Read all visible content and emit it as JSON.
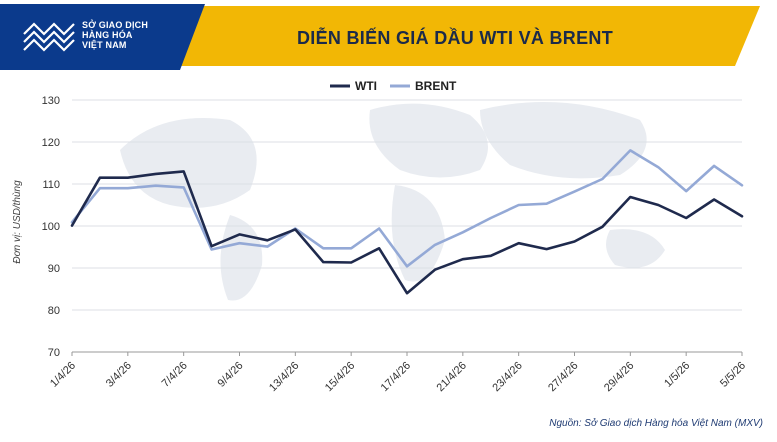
{
  "header": {
    "logo_lines": [
      "SỞ GIAO DỊCH",
      "HÀNG HÓA",
      "VIỆT NAM"
    ],
    "title": "DIỄN BIẾN GIÁ DẦU WTI VÀ BRENT"
  },
  "source": "Nguồn: Sở Giao dịch Hàng hóa Việt Nam (MXV)",
  "colors": {
    "accent": "#f2b705",
    "wti": "#1f2a4d",
    "brent": "#94a9d6",
    "brand_blue": "#0b3a8c"
  },
  "chart_data": {
    "type": "line",
    "ylabel": "Đơn vị: USD/thùng",
    "ylim": [
      70,
      130
    ],
    "yticks": [
      70,
      80,
      90,
      100,
      110,
      120,
      130
    ],
    "grid": true,
    "legend_position": "top-center",
    "x_tick_labels": [
      "1/4/26",
      "3/4/26",
      "5/4/26",
      "7/4/26",
      "9/4/26",
      "11/4/26",
      "13/4/26",
      "15/4/26",
      "17/4/26",
      "19/4/26",
      "21/4/26",
      "23/4/26",
      "25/4/26",
      "27/4/26",
      "29/4/26",
      "1/5/26",
      "3/5/26",
      "5/5/26"
    ],
    "x": [
      "1/4/26",
      "2/4/26",
      "3/4/26",
      "6/4/26",
      "7/4/26",
      "8/4/26",
      "9/4/26",
      "10/4/26",
      "13/4/26",
      "14/4/26",
      "15/4/26",
      "16/4/26",
      "17/4/26",
      "20/4/26",
      "21/4/26",
      "22/4/26",
      "23/4/26",
      "24/4/26",
      "27/4/26",
      "28/4/26",
      "29/4/26",
      "30/4/26",
      "1/5/26",
      "4/5/26",
      "5/5/26"
    ],
    "series": [
      {
        "name": "WTI",
        "values": [
          100.1,
          111.5,
          111.5,
          112.4,
          113.0,
          95.2,
          98.0,
          96.6,
          99.2,
          91.4,
          91.3,
          94.7,
          84.0,
          89.6,
          92.1,
          92.9,
          95.9,
          94.5,
          96.3,
          99.8,
          106.9,
          105.0,
          101.9,
          106.3,
          102.3
        ]
      },
      {
        "name": "BRENT",
        "values": [
          100.9,
          109.0,
          109.0,
          109.6,
          109.2,
          94.4,
          95.9,
          95.1,
          99.4,
          94.7,
          94.7,
          99.4,
          90.4,
          95.5,
          98.5,
          101.9,
          105.0,
          105.3,
          108.2,
          111.2,
          118.0,
          114.0,
          108.3,
          114.3,
          109.7
        ]
      }
    ]
  }
}
